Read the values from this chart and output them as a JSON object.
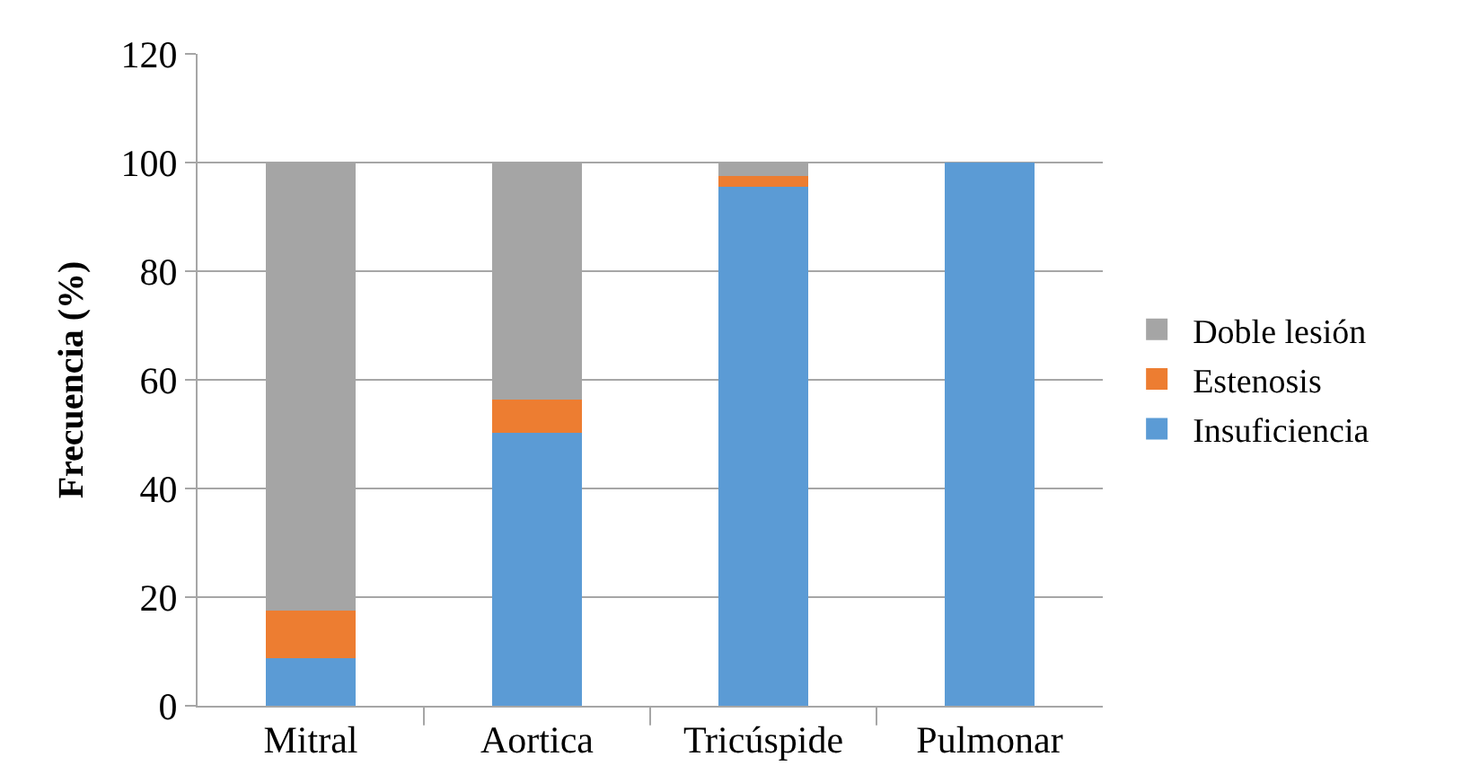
{
  "chart_data": {
    "type": "bar",
    "stacked": true,
    "ylabel": "Frecuencia (%)",
    "categories": [
      "Mitral",
      "Aortica",
      "Tricúspide",
      "Pulmonar"
    ],
    "series": [
      {
        "name": "Insuficiencia",
        "color": "#5b9bd5",
        "values": [
          8.7,
          50.3,
          95.5,
          100
        ]
      },
      {
        "name": "Estenosis",
        "color": "#ed7d31",
        "values": [
          8.9,
          6.1,
          2.0,
          0
        ]
      },
      {
        "name": "Doble lesión",
        "color": "#a5a5a5",
        "values": [
          82.4,
          43.6,
          2.5,
          0
        ]
      }
    ],
    "ylim": [
      0,
      120
    ],
    "yticks": [
      0,
      20,
      40,
      60,
      80,
      100,
      120
    ],
    "grid": "y",
    "legend": "right"
  }
}
